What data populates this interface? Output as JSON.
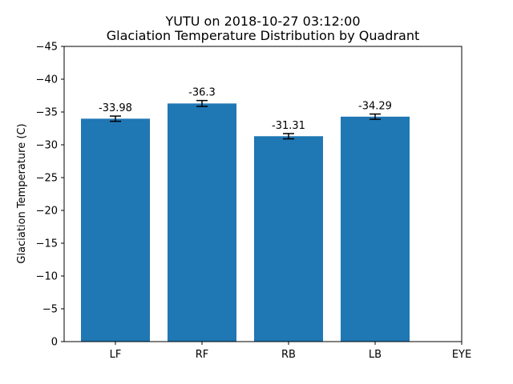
{
  "chart_data": {
    "type": "bar",
    "title": "YUTU on 2018-10-27 03:12:00",
    "subtitle": "Glaciation Temperature Distribution by Quadrant",
    "xlabel": "",
    "ylabel": "Glaciation Temperature (C)",
    "categories": [
      "LF",
      "RF",
      "RB",
      "LB",
      "EYE"
    ],
    "values": [
      -33.98,
      -36.3,
      -31.31,
      -34.29,
      null
    ],
    "value_labels": [
      "-33.98",
      "-36.3",
      "-31.31",
      "-34.29",
      ""
    ],
    "errors": [
      0.4,
      0.45,
      0.4,
      0.4,
      null
    ],
    "ylim": [
      0,
      -45
    ],
    "yticks": [
      0,
      -5,
      -10,
      -15,
      -20,
      -25,
      -30,
      -35,
      -40,
      -45
    ],
    "ytick_labels": [
      "0",
      "−5",
      "−10",
      "−15",
      "−20",
      "−25",
      "−30",
      "−35",
      "−40",
      "−45"
    ],
    "bar_color": "#1f77b4",
    "errorbar_color": "#000000",
    "grid": false
  }
}
